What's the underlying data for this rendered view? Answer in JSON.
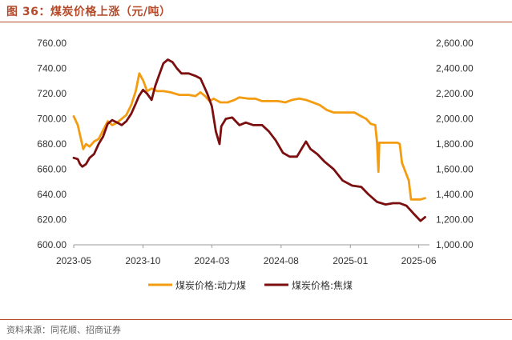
{
  "figure": {
    "title": "图 36：煤炭价格上涨（元/吨）",
    "source": "资料来源：同花顺、招商证券"
  },
  "chart_data": {
    "type": "line",
    "title": "图 36：煤炭价格上涨（元/吨）",
    "x_ticks": [
      "2023-05",
      "2023-10",
      "2024-03",
      "2024-08",
      "2025-01",
      "2025-06"
    ],
    "y_left": {
      "ticks": [
        "600.00",
        "620.00",
        "640.00",
        "660.00",
        "680.00",
        "700.00",
        "720.00",
        "740.00",
        "760.00"
      ],
      "ylim": [
        600,
        760
      ]
    },
    "y_right": {
      "ticks": [
        "1,000.00",
        "1,200.00",
        "1,400.00",
        "1,600.00",
        "1,800.00",
        "2,000.00",
        "2,200.00",
        "2,400.00",
        "2,600.00"
      ],
      "ylim": [
        1000,
        2600
      ]
    },
    "grid": false,
    "legend_position": "bottom",
    "series": [
      {
        "name": "煤炭价格:动力煤",
        "axis": "left",
        "color": "#f39c12",
        "points": [
          [
            "2023-05-01",
            702
          ],
          [
            "2023-05-10",
            695
          ],
          [
            "2023-05-17",
            684
          ],
          [
            "2023-05-22",
            676
          ],
          [
            "2023-05-28",
            680
          ],
          [
            "2023-06-05",
            678
          ],
          [
            "2023-06-15",
            682
          ],
          [
            "2023-06-25",
            684
          ],
          [
            "2023-07-05",
            691
          ],
          [
            "2023-07-15",
            698
          ],
          [
            "2023-07-25",
            695
          ],
          [
            "2023-08-05",
            697
          ],
          [
            "2023-08-15",
            700
          ],
          [
            "2023-08-25",
            703
          ],
          [
            "2023-09-05",
            711
          ],
          [
            "2023-09-15",
            722
          ],
          [
            "2023-09-23",
            736
          ],
          [
            "2023-10-02",
            730
          ],
          [
            "2023-10-10",
            722
          ],
          [
            "2023-10-20",
            724
          ],
          [
            "2023-11-01",
            722
          ],
          [
            "2023-11-15",
            722
          ],
          [
            "2023-12-01",
            721
          ],
          [
            "2023-12-20",
            719
          ],
          [
            "2024-01-10",
            719
          ],
          [
            "2024-01-25",
            718
          ],
          [
            "2024-02-05",
            721
          ],
          [
            "2024-02-15",
            718
          ],
          [
            "2024-02-25",
            714
          ],
          [
            "2024-03-05",
            716
          ],
          [
            "2024-03-20",
            713
          ],
          [
            "2024-04-05",
            713
          ],
          [
            "2024-04-20",
            715
          ],
          [
            "2024-05-01",
            717
          ],
          [
            "2024-05-20",
            716
          ],
          [
            "2024-06-05",
            716
          ],
          [
            "2024-06-20",
            714
          ],
          [
            "2024-07-05",
            714
          ],
          [
            "2024-07-25",
            714
          ],
          [
            "2024-08-10",
            713
          ],
          [
            "2024-08-25",
            715
          ],
          [
            "2024-09-10",
            716
          ],
          [
            "2024-09-25",
            715
          ],
          [
            "2024-10-10",
            713
          ],
          [
            "2024-10-25",
            711
          ],
          [
            "2024-11-10",
            707
          ],
          [
            "2024-11-25",
            705
          ],
          [
            "2024-12-15",
            705
          ],
          [
            "2025-01-10",
            705
          ],
          [
            "2025-01-25",
            702
          ],
          [
            "2025-02-05",
            700
          ],
          [
            "2025-02-15",
            696
          ],
          [
            "2025-02-25",
            695
          ],
          [
            "2025-03-01",
            681
          ],
          [
            "2025-03-04",
            658
          ],
          [
            "2025-03-06",
            681
          ],
          [
            "2025-04-15",
            681
          ],
          [
            "2025-04-20",
            680
          ],
          [
            "2025-04-25",
            665
          ],
          [
            "2025-05-10",
            651
          ],
          [
            "2025-05-15",
            636
          ],
          [
            "2025-06-05",
            636
          ],
          [
            "2025-06-15",
            637
          ]
        ]
      },
      {
        "name": "煤炭价格:焦煤",
        "axis": "right",
        "color": "#7b0f0f",
        "points": [
          [
            "2023-05-01",
            1690
          ],
          [
            "2023-05-10",
            1680
          ],
          [
            "2023-05-15",
            1640
          ],
          [
            "2023-05-20",
            1620
          ],
          [
            "2023-05-28",
            1640
          ],
          [
            "2023-06-05",
            1690
          ],
          [
            "2023-06-15",
            1720
          ],
          [
            "2023-06-25",
            1800
          ],
          [
            "2023-07-05",
            1860
          ],
          [
            "2023-07-15",
            1960
          ],
          [
            "2023-07-25",
            1990
          ],
          [
            "2023-08-05",
            1970
          ],
          [
            "2023-08-15",
            1950
          ],
          [
            "2023-08-25",
            1980
          ],
          [
            "2023-09-05",
            2040
          ],
          [
            "2023-09-15",
            2120
          ],
          [
            "2023-09-22",
            2180
          ],
          [
            "2023-10-01",
            2230
          ],
          [
            "2023-10-10",
            2200
          ],
          [
            "2023-10-20",
            2150
          ],
          [
            "2023-10-28",
            2260
          ],
          [
            "2023-11-05",
            2340
          ],
          [
            "2023-11-15",
            2440
          ],
          [
            "2023-11-25",
            2470
          ],
          [
            "2023-12-05",
            2450
          ],
          [
            "2023-12-15",
            2400
          ],
          [
            "2023-12-25",
            2360
          ],
          [
            "2024-01-10",
            2360
          ],
          [
            "2024-01-25",
            2340
          ],
          [
            "2024-02-05",
            2320
          ],
          [
            "2024-02-20",
            2200
          ],
          [
            "2024-03-01",
            2100
          ],
          [
            "2024-03-10",
            1900
          ],
          [
            "2024-03-18",
            1800
          ],
          [
            "2024-03-22",
            1940
          ],
          [
            "2024-04-01",
            2000
          ],
          [
            "2024-04-15",
            2010
          ],
          [
            "2024-05-01",
            1950
          ],
          [
            "2024-05-15",
            1970
          ],
          [
            "2024-06-01",
            1950
          ],
          [
            "2024-06-20",
            1950
          ],
          [
            "2024-07-05",
            1900
          ],
          [
            "2024-07-20",
            1830
          ],
          [
            "2024-08-05",
            1730
          ],
          [
            "2024-08-20",
            1700
          ],
          [
            "2024-09-05",
            1700
          ],
          [
            "2024-09-15",
            1760
          ],
          [
            "2024-09-25",
            1820
          ],
          [
            "2024-10-05",
            1760
          ],
          [
            "2024-10-20",
            1720
          ],
          [
            "2024-11-05",
            1660
          ],
          [
            "2024-11-25",
            1600
          ],
          [
            "2024-12-15",
            1510
          ],
          [
            "2025-01-05",
            1470
          ],
          [
            "2025-01-25",
            1460
          ],
          [
            "2025-02-10",
            1400
          ],
          [
            "2025-03-01",
            1340
          ],
          [
            "2025-03-20",
            1320
          ],
          [
            "2025-04-05",
            1330
          ],
          [
            "2025-04-20",
            1330
          ],
          [
            "2025-05-05",
            1310
          ],
          [
            "2025-05-20",
            1250
          ],
          [
            "2025-06-05",
            1190
          ],
          [
            "2025-06-15",
            1220
          ]
        ]
      }
    ]
  }
}
